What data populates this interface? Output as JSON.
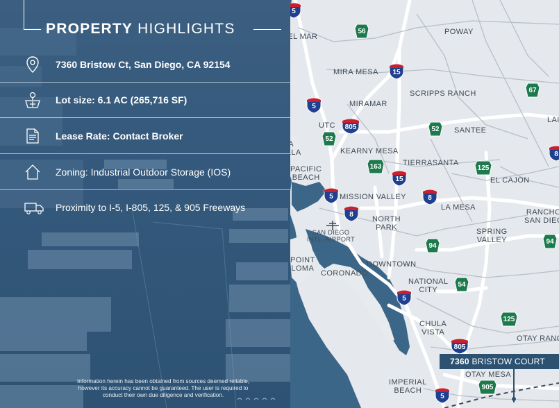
{
  "panel": {
    "title_bold": "PROPERTY",
    "title_light": "HIGHLIGHTS",
    "highlights": [
      {
        "icon": "map-pin-icon",
        "label": "7360 Bristow Ct, San Diego, CA 92154"
      },
      {
        "icon": "lot-size-icon",
        "label": "Lot size: 6.1 AC (265,716 SF)"
      },
      {
        "icon": "document-icon",
        "label": "Lease Rate:  Contact Broker"
      },
      {
        "icon": "house-icon",
        "label": "Zoning: Industrial Outdoor Storage (IOS)"
      },
      {
        "icon": "truck-icon",
        "label": "Proximity to I-5, I-805, 125, & 905 Freeways"
      }
    ],
    "disclaimer": "Information herein has been obtained from sources deemed reliable, however its accuracy cannot be guaranteed. The user is required to conduct their own due diligence and verification."
  },
  "map": {
    "places": {
      "del_mar": "DEL MAR",
      "poway": "POWAY",
      "mira_mesa": "MIRA MESA",
      "scripps_ranch": "SCRIPPS RANCH",
      "miramar": "MIRAMAR",
      "utc": "UTC",
      "santee": "SANTEE",
      "la_jolla": "LA\nJOLLA",
      "kearny_mesa": "KEARNY MESA",
      "lakeside": "LAI",
      "tierrasanta": "TIERRASANTA",
      "pacific_beach": "PACIFIC\nBEACH",
      "el_cajon": "EL CAJON",
      "mission_valley": "MISSION VALLEY",
      "la_mesa": "LA MESA",
      "rancho_san_diego": "RANCHO\nSAN DIEG",
      "north_park": "NORTH\nPARK",
      "airport": "SAN DIEGO\nINTL. AIRPORT",
      "spring_valley": "SPRING\nVALLEY",
      "point_loma": "POINT\nLOMA",
      "downtown": "DOWNTOWN",
      "coronado": "CORONADO",
      "national_city": "NATIONAL\nCITY",
      "chula_vista": "CHULA\nVISTA",
      "otay_ranch": "OTAY RANC",
      "otay_mesa": "OTAY MESA",
      "imperial_beach": "IMPERIAL\nBEACH"
    },
    "routes": {
      "i5_top": "5",
      "sr56": "56",
      "i15_a": "15",
      "sr67": "67",
      "i5_b": "5",
      "i805": "805",
      "sr52_a": "52",
      "sr52_b": "52",
      "route_8_edge": "8",
      "sr163": "163",
      "sr125_a": "125",
      "i15_b": "15",
      "i5_c": "5",
      "i8_a": "8",
      "i8_b": "8",
      "sr94_a": "94",
      "sr94_b": "94",
      "sr54": "54",
      "i5_d": "5",
      "sr125_b": "125",
      "i805_b": "805",
      "sr905": "905",
      "i5_e": "5"
    },
    "property_label_bold": "7360",
    "property_label_rest": "BRISTOW COURT",
    "colors": {
      "interstate_blue": "#1f3f8f",
      "interstate_red": "#c8202f",
      "state_route_green": "#1d7a4c",
      "panel_blue": "#35597b",
      "water": "#3b6c92"
    }
  }
}
